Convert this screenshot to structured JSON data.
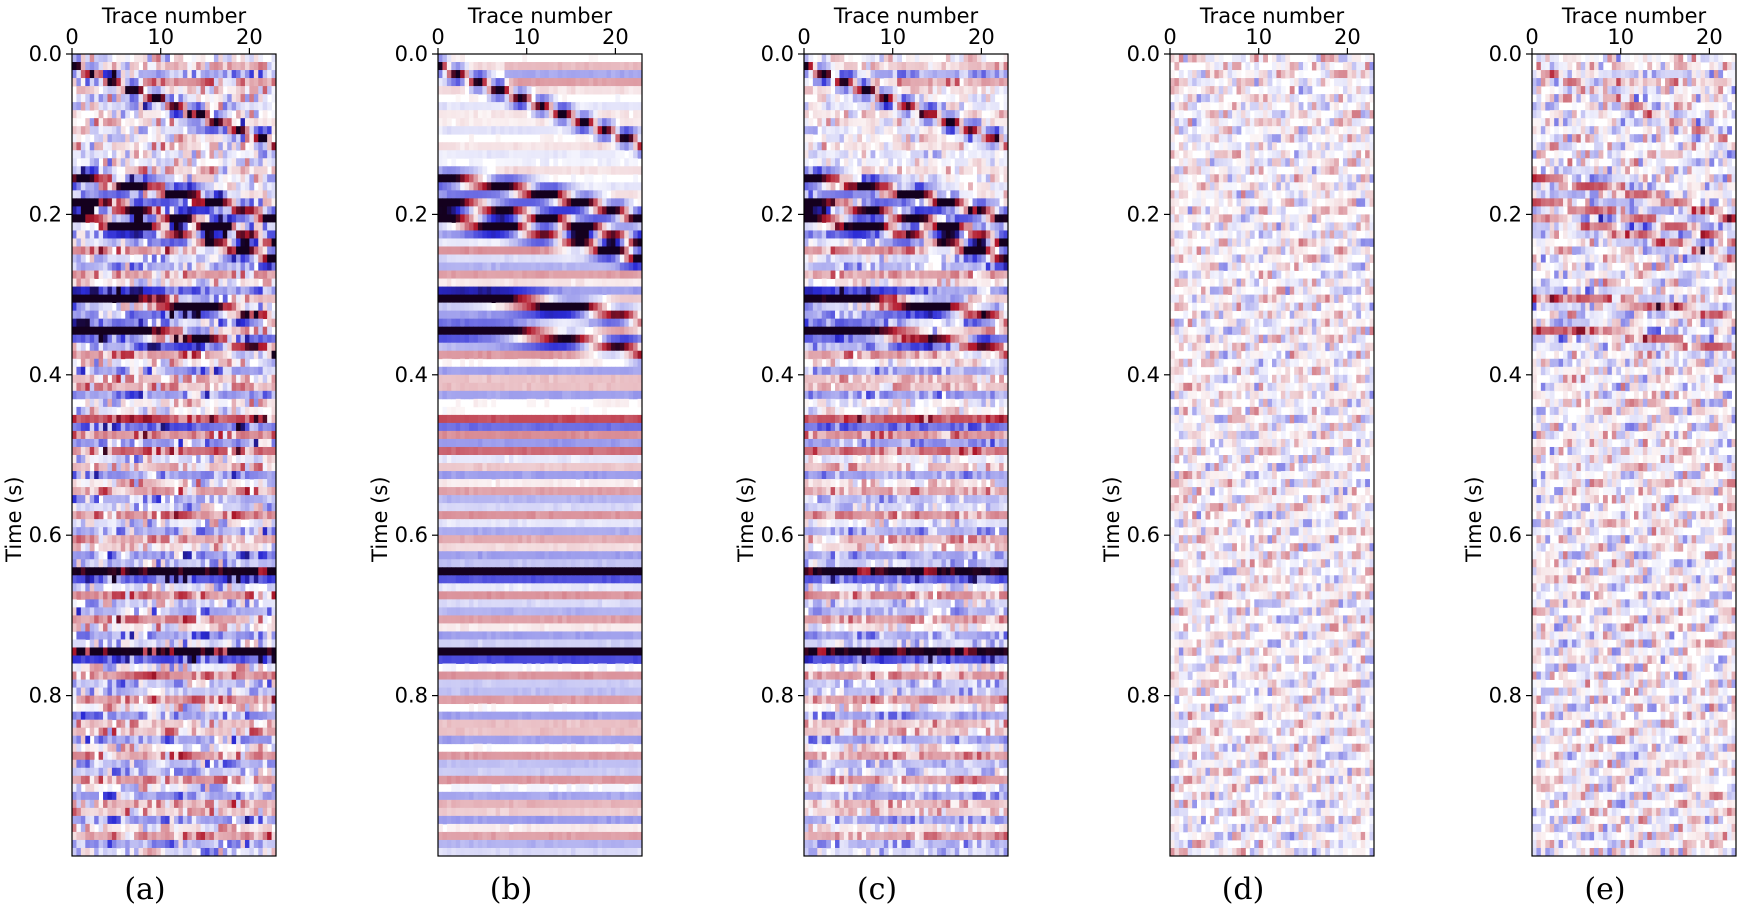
{
  "chart_data": [
    {
      "type": "heatmap",
      "caption": "(a)",
      "xlabel": "Trace number",
      "ylabel": "Time (s)",
      "xlim": [
        0,
        23
      ],
      "ylim": [
        1.0,
        0.0
      ],
      "x_ticks": [
        "0",
        "10",
        "20"
      ],
      "y_ticks": [
        "0.0",
        "0.2",
        "0.4",
        "0.6",
        "0.8"
      ],
      "colormap": "seismic (blue-white-red)",
      "noise_level": 0.55,
      "amplitude": 1.0,
      "direct_wave": true,
      "strong_reflections": true,
      "late_reflections": true
    },
    {
      "type": "heatmap",
      "caption": "(b)",
      "xlabel": "Trace number",
      "ylabel": "Time (s)",
      "xlim": [
        0,
        23
      ],
      "ylim": [
        1.0,
        0.0
      ],
      "x_ticks": [
        "0",
        "10",
        "20"
      ],
      "y_ticks": [
        "0.0",
        "0.2",
        "0.4",
        "0.6",
        "0.8"
      ],
      "colormap": "seismic (blue-white-red)",
      "noise_level": 0.05,
      "amplitude": 1.0,
      "direct_wave": true,
      "strong_reflections": true,
      "late_reflections": true
    },
    {
      "type": "heatmap",
      "caption": "(c)",
      "xlabel": "Trace number",
      "ylabel": "Time (s)",
      "xlim": [
        0,
        23
      ],
      "ylim": [
        1.0,
        0.0
      ],
      "x_ticks": [
        "0",
        "10",
        "20"
      ],
      "y_ticks": [
        "0.0",
        "0.2",
        "0.4",
        "0.6",
        "0.8"
      ],
      "colormap": "seismic (blue-white-red)",
      "noise_level": 0.35,
      "amplitude": 0.95,
      "direct_wave": true,
      "strong_reflections": true,
      "late_reflections": true
    },
    {
      "type": "heatmap",
      "caption": "(d)",
      "xlabel": "Trace number",
      "ylabel": "Time (s)",
      "xlim": [
        0,
        23
      ],
      "ylim": [
        1.0,
        0.0
      ],
      "x_ticks": [
        "0",
        "10",
        "20"
      ],
      "y_ticks": [
        "0.0",
        "0.2",
        "0.4",
        "0.6",
        "0.8"
      ],
      "colormap": "seismic (blue-white-red)",
      "noise_level": 0.45,
      "amplitude": 0.18,
      "direct_wave": false,
      "strong_reflections": false,
      "late_reflections": false
    },
    {
      "type": "heatmap",
      "caption": "(e)",
      "xlabel": "Trace number",
      "ylabel": "Time (s)",
      "xlim": [
        0,
        23
      ],
      "ylim": [
        1.0,
        0.0
      ],
      "x_ticks": [
        "0",
        "10",
        "20"
      ],
      "y_ticks": [
        "0.0",
        "0.2",
        "0.4",
        "0.6",
        "0.8"
      ],
      "colormap": "seismic (blue-white-red)",
      "noise_level": 0.5,
      "amplitude": 0.45,
      "direct_wave": true,
      "strong_reflections": true,
      "late_reflections": false
    }
  ],
  "colors": {
    "positive": "#b2182b",
    "negative": "#2b2bd6",
    "zero": "#ffffff"
  }
}
